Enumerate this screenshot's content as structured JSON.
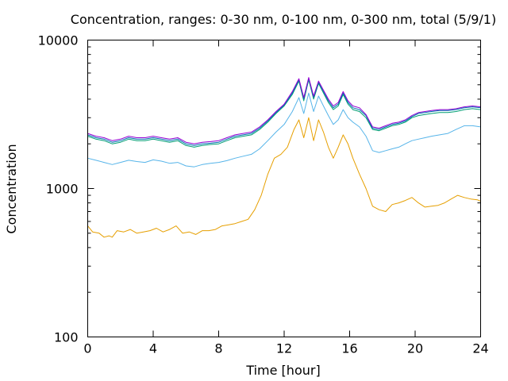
{
  "chart_data": {
    "type": "line",
    "title": "Concentration, ranges: 0-30 nm, 0-100 nm, 0-300 nm, total (5/9/1)",
    "xlabel": "Time [hour]",
    "ylabel": "Concentration",
    "xlim": [
      0,
      24
    ],
    "ylim": [
      100,
      10000
    ],
    "yscale": "log",
    "grid": false,
    "xticks": [
      "0",
      "4",
      "8",
      "12",
      "16",
      "20",
      "24"
    ],
    "yticks": [
      "100",
      "1000",
      "10000"
    ],
    "series": [
      {
        "color": "#e69f00",
        "x": [
          0,
          0.3,
          0.7,
          1.0,
          1.3,
          1.5,
          1.8,
          2.2,
          2.6,
          3.0,
          3.4,
          3.8,
          4.2,
          4.6,
          5.0,
          5.4,
          5.8,
          6.2,
          6.6,
          7.0,
          7.4,
          7.8,
          8.2,
          8.6,
          9.0,
          9.4,
          9.8,
          10.2,
          10.6,
          11.0,
          11.4,
          11.8,
          12.2,
          12.6,
          12.9,
          13.2,
          13.5,
          13.8,
          14.1,
          14.4,
          14.7,
          15.0,
          15.3,
          15.6,
          15.9,
          16.2,
          16.6,
          17.0,
          17.4,
          17.8,
          18.2,
          18.6,
          19.0,
          19.4,
          19.8,
          20.2,
          20.6,
          21.0,
          21.4,
          21.8,
          22.2,
          22.6,
          23.0,
          23.4,
          23.8,
          24.0
        ],
        "y": [
          560,
          510,
          500,
          470,
          480,
          470,
          520,
          510,
          530,
          500,
          510,
          520,
          540,
          510,
          530,
          560,
          500,
          510,
          490,
          520,
          520,
          530,
          560,
          570,
          580,
          600,
          620,
          720,
          900,
          1250,
          1600,
          1700,
          1900,
          2500,
          2900,
          2200,
          3000,
          2100,
          2900,
          2400,
          1900,
          1600,
          1900,
          2300,
          2000,
          1600,
          1250,
          1000,
          760,
          720,
          700,
          780,
          800,
          830,
          870,
          800,
          750,
          760,
          770,
          800,
          850,
          900,
          870,
          850,
          840,
          820
        ]
      },
      {
        "color": "#56b4e9",
        "x": [
          0,
          0.5,
          1.0,
          1.5,
          2.0,
          2.5,
          3.0,
          3.5,
          4.0,
          4.5,
          5.0,
          5.5,
          6.0,
          6.5,
          7.0,
          7.5,
          8.0,
          8.5,
          9.0,
          9.5,
          10.0,
          10.5,
          11.0,
          11.5,
          12.0,
          12.5,
          12.9,
          13.2,
          13.5,
          13.8,
          14.1,
          14.4,
          14.7,
          15.0,
          15.3,
          15.6,
          15.9,
          16.2,
          16.6,
          17.0,
          17.4,
          17.8,
          18.2,
          18.6,
          19.0,
          19.4,
          19.8,
          20.2,
          20.6,
          21.0,
          21.5,
          22.0,
          22.5,
          23.0,
          23.5,
          24.0
        ],
        "y": [
          1600,
          1550,
          1500,
          1450,
          1500,
          1550,
          1520,
          1500,
          1560,
          1530,
          1480,
          1500,
          1420,
          1400,
          1450,
          1480,
          1500,
          1540,
          1600,
          1650,
          1700,
          1850,
          2100,
          2400,
          2700,
          3300,
          4100,
          3200,
          4400,
          3300,
          4200,
          3600,
          3100,
          2700,
          2900,
          3400,
          3000,
          2800,
          2600,
          2250,
          1800,
          1750,
          1800,
          1850,
          1900,
          2000,
          2100,
          2150,
          2200,
          2250,
          2300,
          2350,
          2500,
          2650,
          2650,
          2600
        ]
      },
      {
        "color": "#009e73",
        "x": [
          0,
          0.5,
          1.0,
          1.5,
          2.0,
          2.5,
          3.0,
          3.5,
          4.0,
          4.5,
          5.0,
          5.5,
          6.0,
          6.5,
          7.0,
          7.5,
          8.0,
          8.5,
          9.0,
          9.5,
          10.0,
          10.5,
          11.0,
          11.5,
          12.0,
          12.5,
          12.9,
          13.2,
          13.5,
          13.8,
          14.1,
          14.4,
          14.7,
          15.0,
          15.3,
          15.6,
          15.9,
          16.2,
          16.6,
          17.0,
          17.4,
          17.8,
          18.2,
          18.6,
          19.0,
          19.4,
          19.8,
          20.2,
          20.6,
          21.0,
          21.5,
          22.0,
          22.5,
          23.0,
          23.5,
          24.0
        ],
        "y": [
          2250,
          2150,
          2100,
          2000,
          2050,
          2150,
          2100,
          2100,
          2150,
          2100,
          2050,
          2100,
          1950,
          1900,
          1950,
          1980,
          2000,
          2100,
          2200,
          2250,
          2300,
          2500,
          2800,
          3200,
          3600,
          4300,
          5300,
          3900,
          5400,
          4000,
          5100,
          4400,
          3800,
          3400,
          3600,
          4300,
          3700,
          3400,
          3300,
          3000,
          2500,
          2450,
          2550,
          2650,
          2700,
          2800,
          3000,
          3100,
          3150,
          3200,
          3250,
          3250,
          3300,
          3400,
          3450,
          3400
        ]
      },
      {
        "color": "#0072b2",
        "x": [
          0,
          0.5,
          1.0,
          1.5,
          2.0,
          2.5,
          3.0,
          3.5,
          4.0,
          4.5,
          5.0,
          5.5,
          6.0,
          6.5,
          7.0,
          7.5,
          8.0,
          8.5,
          9.0,
          9.5,
          10.0,
          10.5,
          11.0,
          11.5,
          12.0,
          12.5,
          12.9,
          13.2,
          13.5,
          13.8,
          14.1,
          14.4,
          14.7,
          15.0,
          15.3,
          15.6,
          15.9,
          16.2,
          16.6,
          17.0,
          17.4,
          17.8,
          18.2,
          18.6,
          19.0,
          19.4,
          19.8,
          20.2,
          20.6,
          21.0,
          21.5,
          22.0,
          22.5,
          23.0,
          23.5,
          24.0
        ],
        "y": [
          2300,
          2200,
          2150,
          2050,
          2100,
          2200,
          2150,
          2150,
          2200,
          2150,
          2100,
          2150,
          2000,
          1950,
          2000,
          2020,
          2050,
          2150,
          2250,
          2300,
          2350,
          2550,
          2850,
          3250,
          3650,
          4400,
          5400,
          4000,
          5500,
          4100,
          5200,
          4500,
          3900,
          3500,
          3700,
          4400,
          3800,
          3500,
          3400,
          3100,
          2550,
          2500,
          2600,
          2700,
          2750,
          2850,
          3050,
          3200,
          3250,
          3300,
          3350,
          3350,
          3400,
          3500,
          3550,
          3500
        ]
      },
      {
        "color": "#9400d3",
        "x": [
          0,
          0.5,
          1.0,
          1.5,
          2.0,
          2.5,
          3.0,
          3.5,
          4.0,
          4.5,
          5.0,
          5.5,
          6.0,
          6.5,
          7.0,
          7.5,
          8.0,
          8.5,
          9.0,
          9.5,
          10.0,
          10.5,
          11.0,
          11.5,
          12.0,
          12.5,
          12.9,
          13.2,
          13.5,
          13.8,
          14.1,
          14.4,
          14.7,
          15.0,
          15.3,
          15.6,
          15.9,
          16.2,
          16.6,
          17.0,
          17.4,
          17.8,
          18.2,
          18.6,
          19.0,
          19.4,
          19.8,
          20.2,
          20.6,
          21.0,
          21.5,
          22.0,
          22.5,
          23.0,
          23.5,
          24.0
        ],
        "y": [
          2350,
          2250,
          2200,
          2100,
          2150,
          2250,
          2200,
          2200,
          2250,
          2200,
          2150,
          2200,
          2050,
          2000,
          2050,
          2070,
          2100,
          2200,
          2300,
          2350,
          2400,
          2600,
          2900,
          3300,
          3700,
          4500,
          5500,
          4100,
          5600,
          4200,
          5300,
          4600,
          4000,
          3600,
          3800,
          4500,
          3900,
          3600,
          3500,
          3150,
          2600,
          2550,
          2650,
          2750,
          2800,
          2900,
          3100,
          3250,
          3300,
          3350,
          3400,
          3400,
          3450,
          3550,
          3600,
          3550
        ]
      }
    ]
  }
}
